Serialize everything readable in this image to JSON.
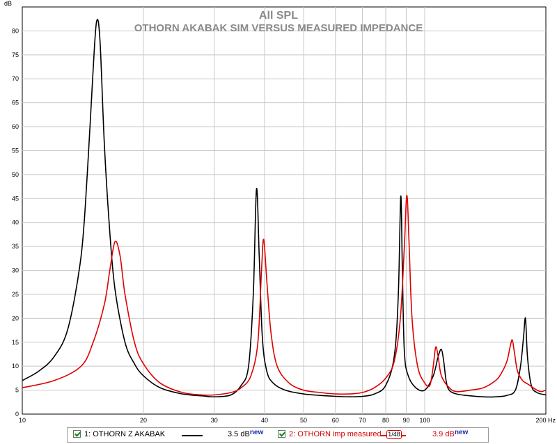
{
  "chart_data": {
    "type": "line",
    "title": "All SPL",
    "subtitle": "OTHORN AKABAK SIM VERSUS MEASURED IMPEDANCE",
    "ylabel": "dB",
    "xunit": "Hz",
    "xscale": "log",
    "xlim": [
      10,
      200
    ],
    "ylim": [
      0,
      85
    ],
    "grid": true,
    "x_ticks": [
      10,
      20,
      30,
      40,
      50,
      60,
      70,
      80,
      90,
      100,
      200
    ],
    "x_tick_labels": [
      "10",
      "20",
      "30",
      "40",
      "50",
      "60",
      "70",
      "80",
      "90",
      "100",
      "200 Hz"
    ],
    "y_ticks": [
      0,
      5,
      10,
      15,
      20,
      25,
      30,
      35,
      40,
      45,
      50,
      55,
      60,
      65,
      70,
      75,
      80
    ],
    "series": [
      {
        "name": "1: OTHORN Z AKABAK",
        "color": "#000000",
        "offset_label": "3.5 dB",
        "x": [
          10,
          11,
          12,
          13,
          14,
          14.5,
          15,
          15.3,
          15.6,
          16,
          16.5,
          17,
          18,
          19,
          20,
          22,
          25,
          28,
          30,
          33,
          35,
          36.5,
          37.5,
          38.2,
          38.8,
          39.5,
          40.5,
          42,
          45,
          50,
          55,
          60,
          65,
          70,
          75,
          80,
          84,
          86,
          87.2,
          88,
          89,
          91,
          95,
          100,
          105,
          108,
          110,
          111.5,
          113,
          115,
          120,
          130,
          140,
          150,
          160,
          168,
          173,
          176,
          178,
          180,
          184,
          190,
          200
        ],
        "y": [
          7,
          9,
          12,
          18,
          33,
          50,
          72,
          82,
          78,
          56,
          38,
          26,
          15,
          10.5,
          8,
          5.5,
          4.2,
          3.8,
          3.6,
          4,
          6,
          10,
          25,
          47,
          33,
          16,
          9,
          6.5,
          5,
          4.2,
          3.9,
          3.7,
          3.6,
          3.7,
          4.2,
          6,
          12,
          25,
          45.5,
          30,
          13,
          8,
          5.5,
          5,
          8,
          12,
          13.5,
          11,
          7,
          5,
          4.2,
          3.8,
          3.6,
          3.6,
          3.9,
          5,
          10,
          16,
          20,
          12,
          6,
          4.5,
          4
        ]
      },
      {
        "name": "2: OTHORN imp measured",
        "color": "#e00000",
        "offset_label": "3.9 dB",
        "smoothing": "1/48",
        "x": [
          10,
          12,
          14,
          15,
          16,
          16.5,
          17,
          17.5,
          18,
          19,
          20,
          22,
          25,
          28,
          30,
          33,
          35,
          37,
          38.5,
          39.3,
          39.8,
          40.5,
          41.5,
          43,
          46,
          50,
          55,
          60,
          65,
          70,
          75,
          80,
          84,
          87,
          89,
          90.3,
          91.5,
          93,
          96,
          100,
          103,
          105,
          106.5,
          108,
          110,
          115,
          120,
          130,
          140,
          150,
          155,
          160,
          163,
          165,
          167,
          170,
          175,
          180,
          190,
          195,
          200
        ],
        "y": [
          5.5,
          7,
          10,
          15,
          23,
          30,
          36,
          33,
          25,
          15,
          10.5,
          6.5,
          4.5,
          4,
          4,
          4.5,
          5.5,
          8,
          15,
          30,
          36.5,
          28,
          17,
          10,
          6.5,
          5,
          4.5,
          4.2,
          4.2,
          4.5,
          5.5,
          7.5,
          11,
          20,
          35,
          45.7,
          35,
          20,
          10,
          6.5,
          6,
          10,
          14,
          12,
          8,
          5.5,
          4.7,
          5,
          5.5,
          7,
          8.5,
          11,
          14,
          15.5,
          13,
          9,
          7,
          6.3,
          5,
          4.7,
          5
        ]
      }
    ],
    "legend": [
      {
        "label": "1: OTHORN Z AKABAK",
        "offset": "3.5 dB",
        "badge": "new",
        "checked": true
      },
      {
        "label": "2: OTHORN imp measured",
        "offset": "3.9 dB",
        "badge": "new",
        "checked": true,
        "smoothing": "1/48"
      }
    ]
  }
}
